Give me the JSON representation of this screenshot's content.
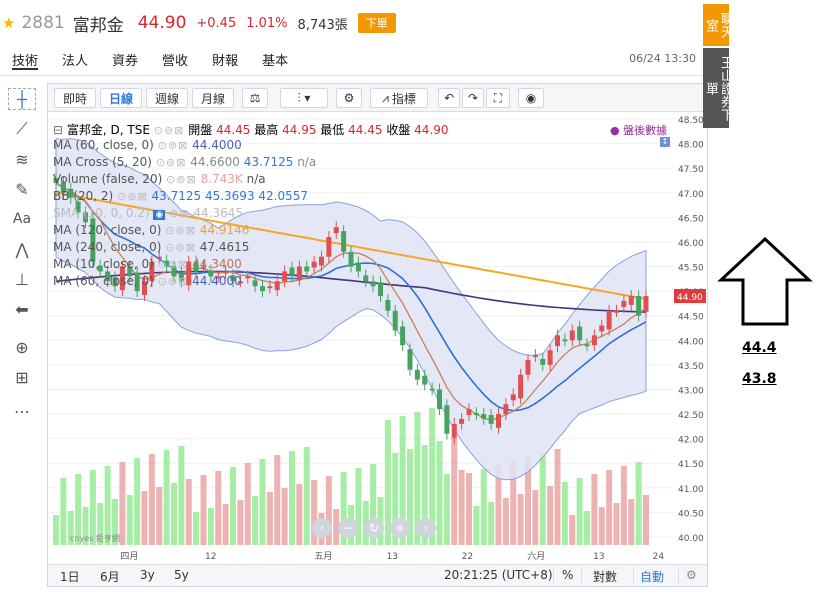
{
  "header": {
    "code": "2881",
    "name": "富邦金",
    "price": "44.90",
    "change": "+0.45",
    "pct": "1.01%",
    "volume": "8,743張",
    "order_label": "下單"
  },
  "tabs": [
    {
      "label": "技術",
      "active": true
    },
    {
      "label": "法人",
      "active": false
    },
    {
      "label": "資券",
      "active": false
    },
    {
      "label": "營收",
      "active": false
    },
    {
      "label": "財報",
      "active": false
    },
    {
      "label": "基本",
      "active": false
    }
  ],
  "timestamp": "06/24 13:30",
  "toolbar": {
    "intraday": "即時",
    "day": "日線",
    "week": "週線",
    "month": "月線",
    "indicators": "指標"
  },
  "legend": {
    "ohlc": "富邦金, D, TSE",
    "open_label": "開盤",
    "open": "44.45",
    "high_label": "最高",
    "high": "44.95",
    "low_label": "最低",
    "low": "44.45",
    "close_label": "收盤",
    "close": "44.90",
    "after_hours": "盤後數據",
    "ma60": "MA (60, close, 0)",
    "ma60_val": "44.4000",
    "macross": "MA Cross (5, 20)",
    "macross_val": "44.6600",
    "macross_val2": "43.7125",
    "macross_na": "n/a",
    "volume": "Volume (false, 20)",
    "volume_val": "8.743K",
    "volume_na": "n/a",
    "bb": "BB (20, 2)",
    "bb_v1": "43.7125",
    "bb_v2": "45.3693",
    "bb_v3": "42.0557",
    "sma_partial": "SMA (10, 0, 0.2)",
    "sma_val": "44.3645",
    "ma120": "MA (120, close, 0)",
    "ma120_val": "44.9146",
    "ma240": "MA (240, close, 0)",
    "ma240_val": "47.4615",
    "ma10": "MA (10, close, 0)",
    "ma10_val": "44.3400",
    "ma60b": "MA (60, close, 0)",
    "ma60b_val": "44.4000"
  },
  "y_axis": [
    "48.50",
    "48.00",
    "47.50",
    "47.00",
    "46.50",
    "46.00",
    "45.50",
    "45.00",
    "44.50",
    "44.00",
    "43.50",
    "43.00",
    "42.50",
    "42.00",
    "41.50",
    "41.00",
    "40.50",
    "40.00"
  ],
  "price_tag": "44.90",
  "x_axis": [
    "四月",
    "12",
    "五月",
    "13",
    "22",
    "六月",
    "13",
    "24"
  ],
  "bottom": {
    "r1d": "1日",
    "r6m": "6月",
    "r3y": "3y",
    "r5y": "5y",
    "clock": "20:21:25 (UTC+8)",
    "pct": "%",
    "log": "對數",
    "auto": "自動"
  },
  "side": {
    "chat": "聊天室",
    "ticker": "玉山證券下單"
  },
  "annotations": [
    "44.4",
    "43.8"
  ],
  "watermark": "cnyes 鉅亨網",
  "colors": {
    "up": "#d9262b",
    "down": "#46a35f",
    "accent": "#2f78d8",
    "order": "#f39800"
  }
}
